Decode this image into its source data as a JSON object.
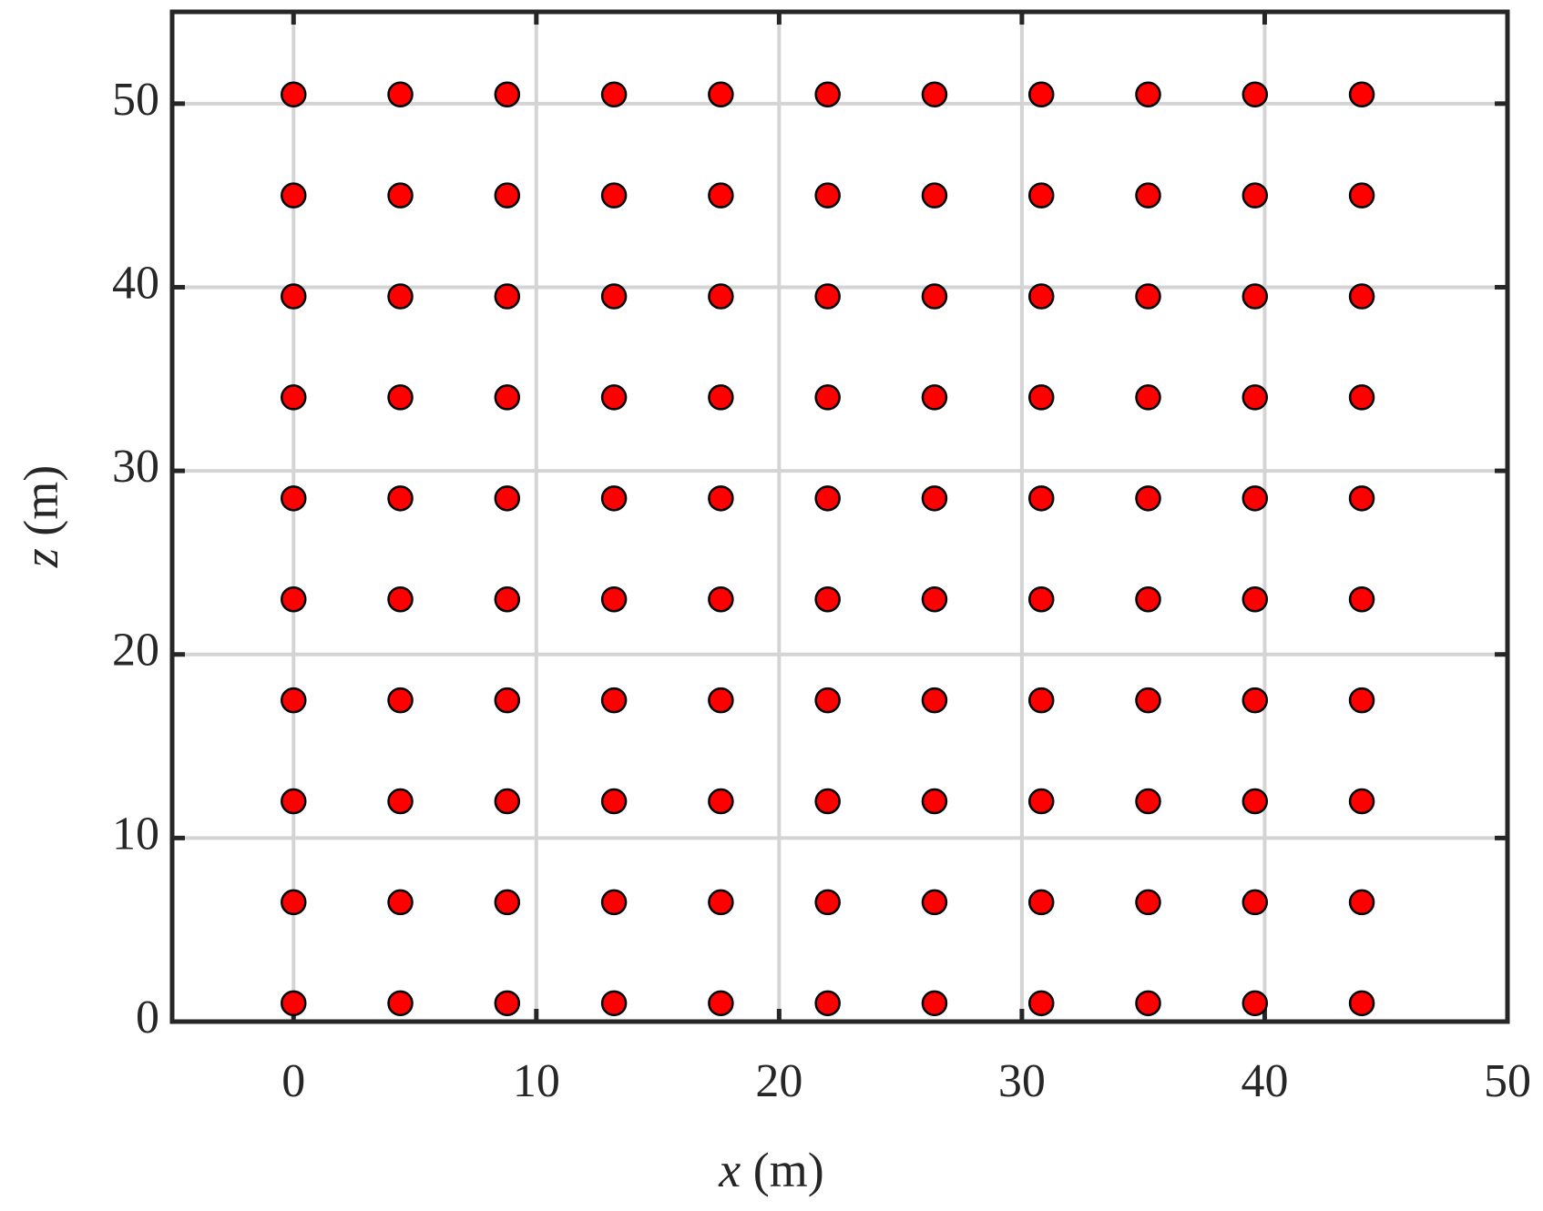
{
  "chart_data": {
    "type": "scatter",
    "xlabel": "x (m)",
    "ylabel": "z (m)",
    "xlim": [
      -5,
      50
    ],
    "ylim": [
      0,
      55
    ],
    "xticks": [
      0,
      10,
      20,
      30,
      40,
      50
    ],
    "yticks": [
      0,
      10,
      20,
      30,
      40,
      50
    ],
    "grid": true,
    "series": [
      {
        "color": "#ff0000",
        "x": [
          0,
          4.4,
          8.8,
          13.2,
          17.6,
          22,
          26.4,
          30.8,
          35.2,
          39.6,
          44,
          0,
          4.4,
          8.8,
          13.2,
          17.6,
          22,
          26.4,
          30.8,
          35.2,
          39.6,
          44,
          0,
          4.4,
          8.8,
          13.2,
          17.6,
          22,
          26.4,
          30.8,
          35.2,
          39.6,
          44,
          0,
          4.4,
          8.8,
          13.2,
          17.6,
          22,
          26.4,
          30.8,
          35.2,
          39.6,
          44,
          0,
          4.4,
          8.8,
          13.2,
          17.6,
          22,
          26.4,
          30.8,
          35.2,
          39.6,
          44,
          0,
          4.4,
          8.8,
          13.2,
          17.6,
          22,
          26.4,
          30.8,
          35.2,
          39.6,
          44,
          0,
          4.4,
          8.8,
          13.2,
          17.6,
          22,
          26.4,
          30.8,
          35.2,
          39.6,
          44,
          0,
          4.4,
          8.8,
          13.2,
          17.6,
          22,
          26.4,
          30.8,
          35.2,
          39.6,
          44,
          0,
          4.4,
          8.8,
          13.2,
          17.6,
          22,
          26.4,
          30.8,
          35.2,
          39.6,
          44,
          0,
          4.4,
          8.8,
          13.2,
          17.6,
          22,
          26.4,
          30.8,
          35.2,
          39.6,
          44
        ],
        "values": [
          1,
          1,
          1,
          1,
          1,
          1,
          1,
          1,
          1,
          1,
          1,
          6.5,
          6.5,
          6.5,
          6.5,
          6.5,
          6.5,
          6.5,
          6.5,
          6.5,
          6.5,
          6.5,
          12,
          12,
          12,
          12,
          12,
          12,
          12,
          12,
          12,
          12,
          12,
          17.5,
          17.5,
          17.5,
          17.5,
          17.5,
          17.5,
          17.5,
          17.5,
          17.5,
          17.5,
          17.5,
          23,
          23,
          23,
          23,
          23,
          23,
          23,
          23,
          23,
          23,
          23,
          28.5,
          28.5,
          28.5,
          28.5,
          28.5,
          28.5,
          28.5,
          28.5,
          28.5,
          28.5,
          28.5,
          34,
          34,
          34,
          34,
          34,
          34,
          34,
          34,
          34,
          34,
          34,
          39.5,
          39.5,
          39.5,
          39.5,
          39.5,
          39.5,
          39.5,
          39.5,
          39.5,
          39.5,
          39.5,
          45,
          45,
          45,
          45,
          45,
          45,
          45,
          45,
          45,
          45,
          45,
          50.5,
          50.5,
          50.5,
          50.5,
          50.5,
          50.5,
          50.5,
          50.5,
          50.5,
          50.5,
          50.5
        ]
      }
    ]
  }
}
